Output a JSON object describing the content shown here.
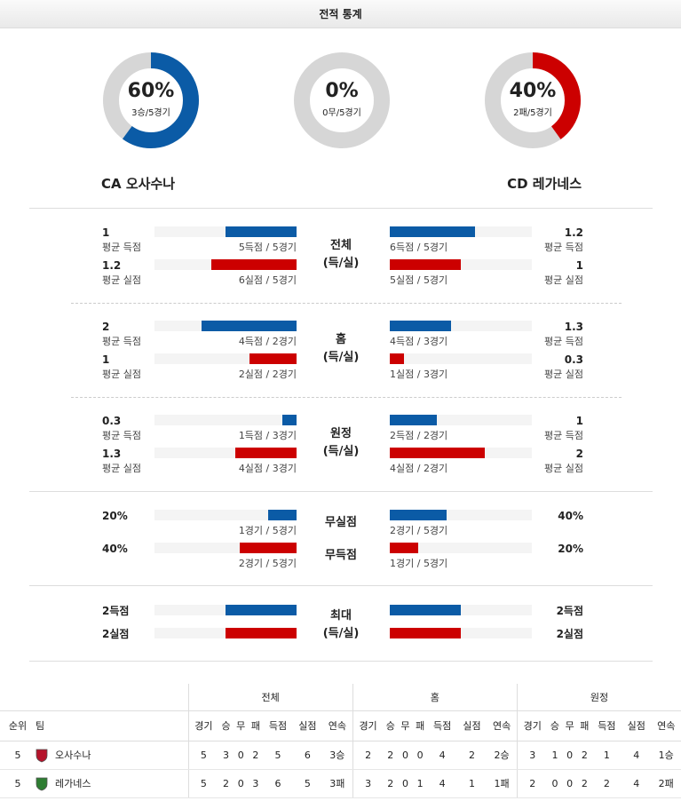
{
  "header": {
    "title": "전적 통계"
  },
  "colors": {
    "blue": "#0b5ba6",
    "red": "#cc0000",
    "ring": "#d6d6d6"
  },
  "donuts": [
    {
      "pct_text": "60%",
      "sub": "3승/5경기",
      "value": 0.6,
      "color": "#0b5ba6"
    },
    {
      "pct_text": "0%",
      "sub": "0무/5경기",
      "value": 0.0,
      "color": "#d6d6d6"
    },
    {
      "pct_text": "40%",
      "sub": "2패/5경기",
      "value": 0.4,
      "color": "#cc0000"
    }
  ],
  "teams": {
    "home": "CA 오사수나",
    "away": "CD 레가네스"
  },
  "sections": [
    {
      "label1": "전체",
      "label2": "(득/실)",
      "rows": [
        {
          "home_val": "1",
          "home_lbl": "평균 득점",
          "home_cap": "5득점 / 5경기",
          "home_frac": 0.5,
          "away_val": "1.2",
          "away_lbl": "평균 득점",
          "away_cap": "6득점 / 5경기",
          "away_frac": 0.6,
          "color": "blue"
        },
        {
          "home_val": "1.2",
          "home_lbl": "평균 실점",
          "home_cap": "6실점 / 5경기",
          "home_frac": 0.6,
          "away_val": "1",
          "away_lbl": "평균 실점",
          "away_cap": "5실점 / 5경기",
          "away_frac": 0.5,
          "color": "red"
        }
      ]
    },
    {
      "label1": "홈",
      "label2": "(득/실)",
      "rows": [
        {
          "home_val": "2",
          "home_lbl": "평균 득점",
          "home_cap": "4득점 / 2경기",
          "home_frac": 0.67,
          "away_val": "1.3",
          "away_lbl": "평균 득점",
          "away_cap": "4득점 / 3경기",
          "away_frac": 0.43,
          "color": "blue"
        },
        {
          "home_val": "1",
          "home_lbl": "평균 실점",
          "home_cap": "2실점 / 2경기",
          "home_frac": 0.33,
          "away_val": "0.3",
          "away_lbl": "평균 실점",
          "away_cap": "1실점 / 3경기",
          "away_frac": 0.1,
          "color": "red"
        }
      ]
    },
    {
      "label1": "원정",
      "label2": "(득/실)",
      "rows": [
        {
          "home_val": "0.3",
          "home_lbl": "평균 득점",
          "home_cap": "1득점 / 3경기",
          "home_frac": 0.1,
          "away_val": "1",
          "away_lbl": "평균 득점",
          "away_cap": "2득점 / 2경기",
          "away_frac": 0.33,
          "color": "blue"
        },
        {
          "home_val": "1.3",
          "home_lbl": "평균 실점",
          "home_cap": "4실점 / 3경기",
          "home_frac": 0.43,
          "away_val": "2",
          "away_lbl": "평균 실점",
          "away_cap": "4실점 / 2경기",
          "away_frac": 0.67,
          "color": "red"
        }
      ]
    }
  ],
  "clean": {
    "rows": [
      {
        "label": "무실점",
        "home_val": "20%",
        "home_cap": "1경기 / 5경기",
        "home_frac": 0.2,
        "away_val": "40%",
        "away_cap": "2경기 / 5경기",
        "away_frac": 0.4,
        "color": "blue"
      },
      {
        "label": "무득점",
        "home_val": "40%",
        "home_cap": "2경기 / 5경기",
        "home_frac": 0.4,
        "away_val": "20%",
        "away_cap": "1경기 / 5경기",
        "away_frac": 0.2,
        "color": "red"
      }
    ]
  },
  "maxrow": {
    "label1": "최대",
    "label2": "(득/실)",
    "rows": [
      {
        "home_val": "2득점",
        "away_val": "2득점",
        "home_frac": 0.5,
        "away_frac": 0.5,
        "color": "blue"
      },
      {
        "home_val": "2실점",
        "away_val": "2실점",
        "home_frac": 0.5,
        "away_frac": 0.5,
        "color": "red"
      }
    ]
  },
  "standings": {
    "groups": [
      "전체",
      "홈",
      "원정"
    ],
    "rank_header": "순위",
    "team_header": "팀",
    "stat_headers": [
      "경기",
      "승",
      "무",
      "패",
      "득점",
      "실점",
      "연속"
    ],
    "rows": [
      {
        "rank": "5",
        "team": "오사수나",
        "crest_color": "#b5132b",
        "total": [
          "5",
          "3",
          "0",
          "2",
          "5",
          "6",
          "3승"
        ],
        "home": [
          "2",
          "2",
          "0",
          "0",
          "4",
          "2",
          "2승"
        ],
        "away": [
          "3",
          "1",
          "0",
          "2",
          "1",
          "4",
          "1승"
        ]
      },
      {
        "rank": "5",
        "team": "레가네스",
        "crest_color": "#2e7d32",
        "total": [
          "5",
          "2",
          "0",
          "3",
          "6",
          "5",
          "3패"
        ],
        "home": [
          "3",
          "2",
          "0",
          "1",
          "4",
          "1",
          "1패"
        ],
        "away": [
          "2",
          "0",
          "0",
          "2",
          "2",
          "4",
          "2패"
        ]
      }
    ]
  }
}
